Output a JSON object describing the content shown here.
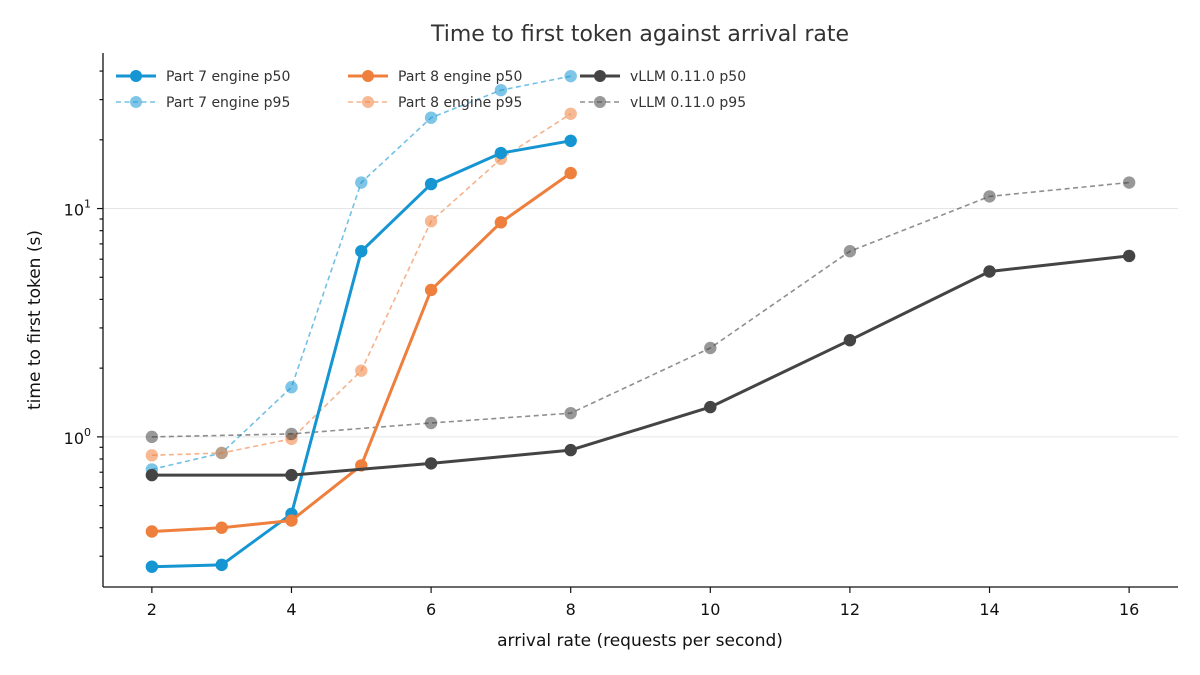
{
  "chart_data": {
    "type": "line",
    "title": "Time to first token against arrival rate",
    "xlabel": "arrival rate (requests per second)",
    "ylabel": "time to first token (s)",
    "y_scale": "log",
    "xlim": [
      1.3,
      16.7
    ],
    "ylim": [
      0.22,
      48
    ],
    "x_ticks": [
      2,
      4,
      6,
      8,
      10,
      12,
      14,
      16
    ],
    "y_ticks": [
      {
        "base": "10",
        "exp": "0",
        "value": 1
      },
      {
        "base": "10",
        "exp": "1",
        "value": 10
      }
    ],
    "grid": "horizontal major",
    "legend_position": "top-left",
    "legend_columns": 3,
    "series": [
      {
        "name": "Part 7 engine p50",
        "color": "#1596d3",
        "style": "solid",
        "x": [
          2,
          3,
          4,
          5,
          6,
          7,
          8
        ],
        "y": [
          0.27,
          0.275,
          0.46,
          6.5,
          12.8,
          17.5,
          19.8
        ]
      },
      {
        "name": "Part 7 engine p95",
        "color": "#1596d3",
        "style": "dashed",
        "x": [
          2,
          3,
          4,
          5,
          6,
          7,
          8
        ],
        "y": [
          0.72,
          0.85,
          1.65,
          13.0,
          25.0,
          33.0,
          38.0
        ]
      },
      {
        "name": "Part 8 engine p50",
        "color": "#ee7f3d",
        "style": "solid",
        "x": [
          2,
          3,
          4,
          5,
          6,
          7,
          8
        ],
        "y": [
          0.385,
          0.4,
          0.43,
          0.75,
          4.4,
          8.7,
          14.3
        ]
      },
      {
        "name": "Part 8 engine p95",
        "color": "#ee7f3d",
        "style": "dashed",
        "x": [
          2,
          3,
          4,
          5,
          6,
          7,
          8
        ],
        "y": [
          0.83,
          0.85,
          0.98,
          1.95,
          8.8,
          16.5,
          26.0
        ]
      },
      {
        "name": "vLLM 0.11.0 p50",
        "color": "#444444",
        "style": "solid",
        "x": [
          2,
          4,
          6,
          8,
          10,
          12,
          14,
          16
        ],
        "y": [
          0.68,
          0.68,
          0.765,
          0.875,
          1.35,
          2.65,
          5.3,
          6.2
        ]
      },
      {
        "name": "vLLM 0.11.0 p95",
        "color": "#444444",
        "style": "dashed",
        "x": [
          2,
          4,
          6,
          8,
          10,
          12,
          14,
          16
        ],
        "y": [
          1.0,
          1.03,
          1.15,
          1.27,
          2.45,
          6.5,
          11.3,
          13.0
        ]
      }
    ]
  }
}
